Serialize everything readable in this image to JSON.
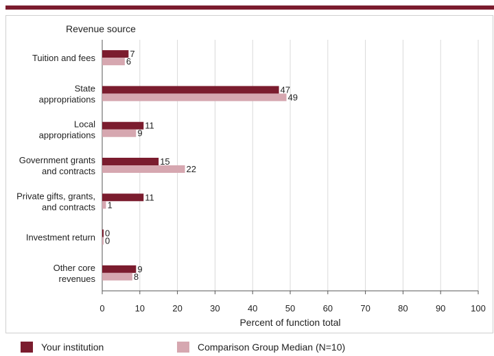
{
  "chart_data": {
    "type": "bar",
    "orientation": "horizontal",
    "title": "Revenue source",
    "xlabel": "Percent of function total",
    "xlim": [
      0,
      100
    ],
    "xticks": [
      0,
      10,
      20,
      30,
      40,
      50,
      60,
      70,
      80,
      90,
      100
    ],
    "grid": true,
    "legend_position": "bottom",
    "categories": [
      [
        "Tuition and fees"
      ],
      [
        "State",
        "appropriations"
      ],
      [
        "Local",
        "appropriations"
      ],
      [
        "Government grants",
        "and contracts"
      ],
      [
        "Private gifts, grants,",
        "and contracts"
      ],
      [
        "Investment return"
      ],
      [
        "Other core",
        "revenues"
      ]
    ],
    "series": [
      {
        "name": "Your institution",
        "color": "#7b1c2e",
        "values": [
          7,
          47,
          11,
          15,
          11,
          0,
          9
        ]
      },
      {
        "name": "Comparison Group Median (N=10)",
        "color": "#d6a7b0",
        "values": [
          6,
          49,
          9,
          22,
          1,
          0,
          8
        ]
      }
    ]
  }
}
